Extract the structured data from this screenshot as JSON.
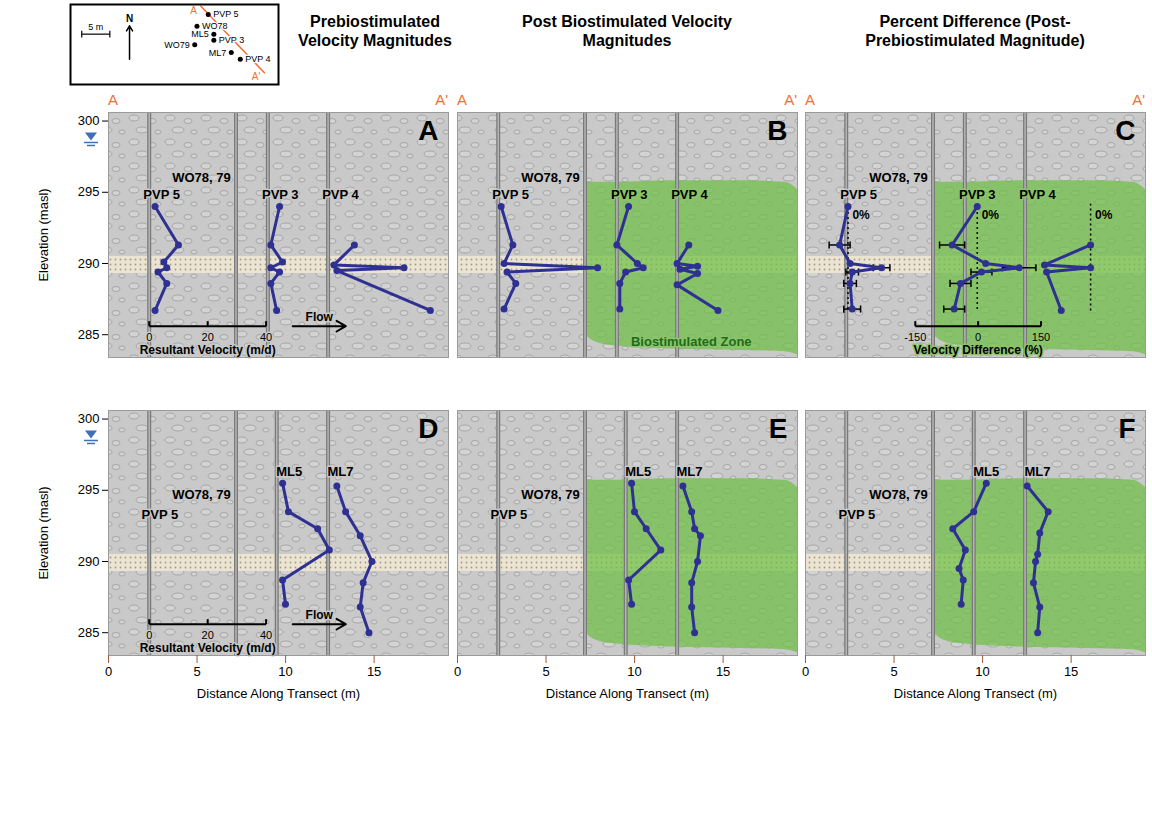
{
  "chart_data": {
    "type": "profile_panels",
    "column_titles": [
      "Prebiostimulated Velocity Magnitudes",
      "Post Biostimulated Velocity Magnitudes",
      "Percent Difference (Post-Prebiostimulated Magnitude)"
    ],
    "transect_labels": [
      "A",
      "A'"
    ],
    "x_label": "Distance Along Transect (m)",
    "y_label": "Elevation (masl)",
    "xlim": [
      0,
      19.2
    ],
    "xticks": [
      0,
      5,
      10,
      15
    ],
    "ylim": [
      283.4,
      300.6
    ],
    "yticks": [
      285,
      290,
      295,
      300
    ],
    "water_table": 298.6,
    "sand_layer": [
      289.3,
      290.5
    ],
    "color": "#2e3192",
    "biostimulated_zone": {
      "label": "Biostimulated Zone",
      "color": "#6dbf45",
      "x": [
        7.2,
        7.4,
        8.0,
        9.0,
        12.0,
        16.0,
        18.5,
        19.2
      ],
      "top": [
        295.7,
        295.7,
        295.7,
        295.7,
        295.8,
        295.8,
        295.7,
        295.2
      ],
      "bottom": [
        285.4,
        284.8,
        284.4,
        284.2,
        284.0,
        283.9,
        283.8,
        283.6
      ],
      "panels": [
        "B",
        "C",
        "E",
        "F"
      ]
    },
    "velocity_scale": {
      "label": "Resultant Velocity (m/d)",
      "ticks": [
        0,
        20,
        40
      ],
      "x_span": [
        2.3,
        8.9
      ],
      "flow_label": "Flow",
      "panels": [
        "A",
        "D"
      ]
    },
    "percent_scale": {
      "label": "Velocity Difference (%)",
      "ticks": [
        -150,
        0,
        150
      ],
      "x_span": [
        6.2,
        13.3
      ],
      "zero_label": "0%",
      "panels": [
        "C"
      ]
    },
    "panels": [
      {
        "letter": "A",
        "measure": "velocity",
        "wells": [
          {
            "name": "PVP 5",
            "x": 2.3
          },
          {
            "name": "WO78, 79",
            "x": 7.2
          },
          {
            "name": "PVP 3",
            "x": 9.0
          },
          {
            "name": "PVP 4",
            "x": 12.4
          }
        ],
        "profiles": [
          {
            "well": "PVP 5",
            "zero_x": 2.3,
            "elevation": [
              294.0,
              291.3,
              290.1,
              289.7,
              289.4,
              288.6,
              286.7
            ],
            "values": [
              2,
              10,
              5,
              6,
              3,
              6,
              2
            ]
          },
          {
            "well": "PVP 3",
            "zero_x": 9.0,
            "elevation": [
              294.0,
              291.3,
              290.1,
              289.7,
              289.4,
              288.6,
              286.7
            ],
            "values": [
              4,
              1,
              5,
              1,
              4,
              1,
              3
            ]
          },
          {
            "well": "PVP 4",
            "zero_x": 12.4,
            "elevation": [
              291.3,
              289.9,
              289.7,
              289.5,
              286.7
            ],
            "values": [
              9,
              2,
              26,
              3,
              35
            ]
          }
        ]
      },
      {
        "letter": "B",
        "measure": "velocity",
        "wells": [
          {
            "name": "PVP 5",
            "x": 2.3
          },
          {
            "name": "WO78, 79",
            "x": 7.2
          },
          {
            "name": "PVP 3",
            "x": 9.0
          },
          {
            "name": "PVP 4",
            "x": 12.4
          }
        ],
        "profiles": [
          {
            "well": "PVP 5",
            "zero_x": 2.3,
            "elevation": [
              294.0,
              291.3,
              290.0,
              289.7,
              289.4,
              288.6,
              286.8
            ],
            "values": [
              1,
              5,
              2,
              34,
              3,
              6,
              2
            ]
          },
          {
            "well": "PVP 3",
            "zero_x": 9.0,
            "elevation": [
              294.0,
              291.3,
              290.0,
              289.7,
              289.4,
              288.6,
              286.8
            ],
            "values": [
              4,
              0,
              7,
              9,
              3,
              1,
              1
            ]
          },
          {
            "well": "PVP 4",
            "zero_x": 12.4,
            "elevation": [
              291.3,
              290.0,
              289.8,
              289.6,
              289.3,
              288.5,
              286.7
            ],
            "values": [
              4,
              0,
              7,
              1,
              7,
              0,
              14
            ]
          }
        ]
      },
      {
        "letter": "C",
        "measure": "percent",
        "wells": [
          {
            "name": "PVP 5",
            "x": 2.3
          },
          {
            "name": "WO78, 79",
            "x": 7.2
          },
          {
            "name": "PVP 3",
            "x": 9.0
          },
          {
            "name": "PVP 4",
            "x": 12.4
          }
        ],
        "profiles": [
          {
            "well": "PVP 5",
            "zero_x": 2.4,
            "elevation": [
              294.0,
              291.3,
              290.0,
              289.7,
              289.4,
              288.6,
              286.8
            ],
            "values": [
              0,
              -20,
              5,
              80,
              10,
              5,
              10
            ],
            "errors": [
              null,
              25,
              null,
              20,
              15,
              15,
              20
            ]
          },
          {
            "well": "PVP 3",
            "zero_x": 9.7,
            "elevation": [
              294.0,
              291.3,
              290.0,
              289.7,
              289.4,
              288.6,
              286.8
            ],
            "values": [
              0,
              -60,
              20,
              100,
              10,
              -40,
              -55
            ],
            "errors": [
              null,
              30,
              null,
              40,
              25,
              25,
              25
            ]
          },
          {
            "well": "PVP 4",
            "zero_x": 16.1,
            "elevation": [
              291.3,
              289.9,
              289.7,
              289.4,
              286.7
            ],
            "values": [
              0,
              -110,
              0,
              -105,
              -70
            ]
          }
        ]
      },
      {
        "letter": "D",
        "measure": "velocity",
        "wells": [
          {
            "name": "PVP 5",
            "x": 2.3
          },
          {
            "name": "WO78, 79",
            "x": 7.2
          },
          {
            "name": "ML5",
            "x": 9.5
          },
          {
            "name": "ML7",
            "x": 12.4
          }
        ],
        "profiles": [
          {
            "well": "ML5",
            "zero_x": 9.5,
            "elevation": [
              295.5,
              293.5,
              292.3,
              290.8,
              288.7,
              287.0
            ],
            "values": [
              2,
              4,
              14,
              18,
              2,
              3
            ]
          },
          {
            "well": "ML7",
            "zero_x": 12.4,
            "elevation": [
              295.3,
              293.5,
              291.8,
              290.0,
              288.5,
              286.8,
              285.0
            ],
            "values": [
              3,
              6,
              11,
              15,
              12,
              11,
              14
            ]
          }
        ]
      },
      {
        "letter": "E",
        "measure": "velocity",
        "wells": [
          {
            "name": "PVP 5",
            "x": 2.3
          },
          {
            "name": "WO78, 79",
            "x": 7.2
          },
          {
            "name": "ML5",
            "x": 9.5
          },
          {
            "name": "ML7",
            "x": 12.4
          }
        ],
        "profiles": [
          {
            "well": "ML5",
            "zero_x": 9.5,
            "elevation": [
              295.5,
              293.5,
              292.3,
              290.8,
              288.7,
              287.0
            ],
            "values": [
              2,
              3,
              7,
              12,
              1,
              2
            ]
          },
          {
            "well": "ML7",
            "zero_x": 12.4,
            "elevation": [
              295.3,
              293.5,
              292.3,
              291.8,
              290.0,
              288.5,
              286.8,
              285.0
            ],
            "values": [
              2,
              5,
              6,
              8,
              7,
              5,
              5,
              6
            ]
          }
        ]
      },
      {
        "letter": "F",
        "measure": "percent",
        "wells": [
          {
            "name": "PVP 5",
            "x": 2.3
          },
          {
            "name": "WO78, 79",
            "x": 7.2
          },
          {
            "name": "ML5",
            "x": 9.5
          },
          {
            "name": "ML7",
            "x": 12.4
          }
        ],
        "profiles": [
          {
            "well": "ML5",
            "zero_x": 9.5,
            "elevation": [
              295.5,
              293.5,
              292.3,
              290.8,
              289.5,
              288.7,
              287.0
            ],
            "values": [
              30,
              0,
              -50,
              -20,
              -35,
              -25,
              -30
            ]
          },
          {
            "well": "ML7",
            "zero_x": 12.4,
            "elevation": [
              295.3,
              293.5,
              292.0,
              290.5,
              290.0,
              288.5,
              286.8,
              285.0
            ],
            "values": [
              5,
              55,
              35,
              30,
              25,
              20,
              35,
              30
            ]
          }
        ]
      }
    ],
    "inset": {
      "xlim": [
        0,
        37
      ],
      "ylim": [
        0,
        14.3
      ],
      "points": [
        {
          "name": "PVP 5",
          "x": 24.5,
          "y": 12.5
        },
        {
          "name": "WO78",
          "x": 22.5,
          "y": 10.4
        },
        {
          "name": "ML5",
          "x": 25.5,
          "y": 9.0
        },
        {
          "name": "PVP 3",
          "x": 25.5,
          "y": 7.9
        },
        {
          "name": "WO79",
          "x": 22.1,
          "y": 7.1
        },
        {
          "name": "ML7",
          "x": 28.6,
          "y": 5.7
        },
        {
          "name": "PVP 4",
          "x": 30.2,
          "y": 4.5
        }
      ],
      "transect": {
        "x": [
          23.2,
          34.5
        ],
        "y": [
          14.0,
          2.1
        ],
        "color": "#f26f37"
      },
      "scale_bar": {
        "length": 5,
        "label": "5 m"
      },
      "north_label": "N"
    }
  }
}
